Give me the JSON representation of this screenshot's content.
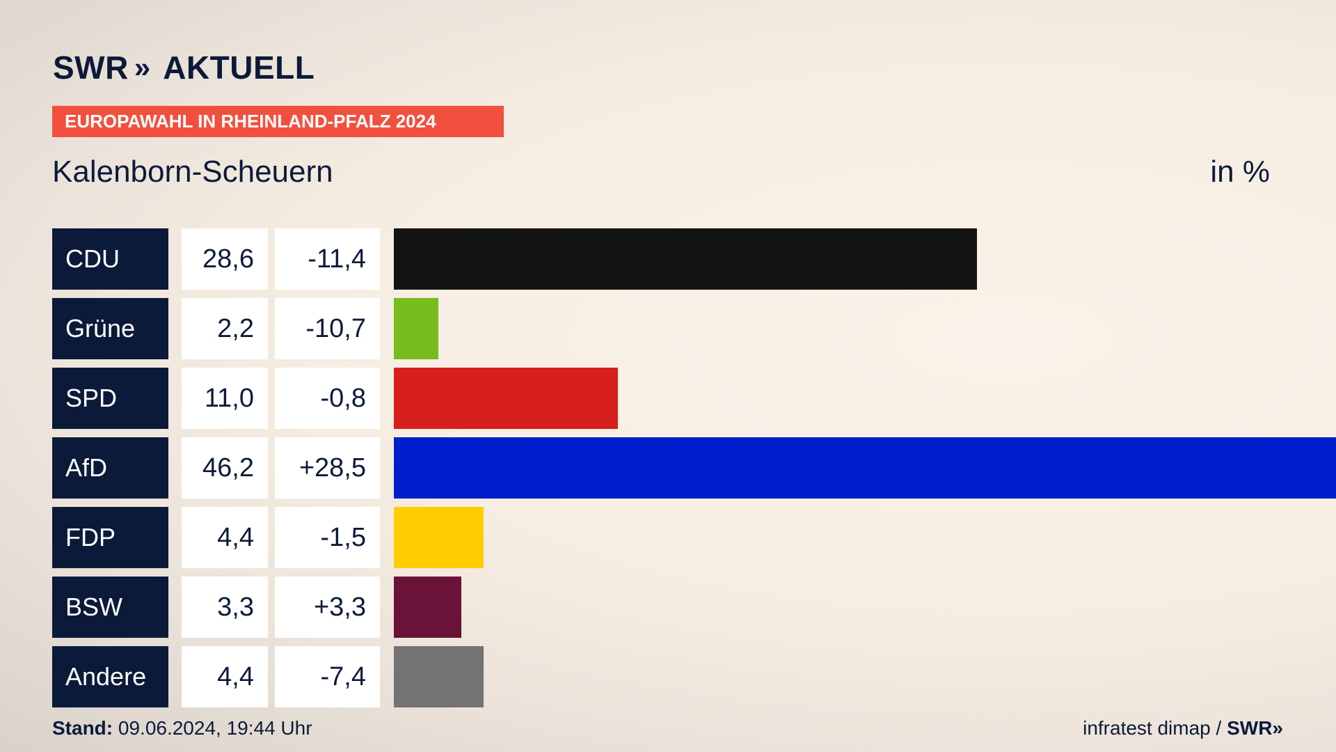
{
  "header": {
    "brand": "SWR",
    "brand_chevrons": "»",
    "brand_product": "AKTUELL",
    "tag": "EUROPAWAHL IN RHEINLAND-PFALZ 2024",
    "subtitle": "Kalenborn-Scheuern",
    "unit": "in %"
  },
  "chart_data": {
    "type": "bar",
    "orientation": "horizontal",
    "title": "EUROPAWAHL IN RHEINLAND-PFALZ 2024",
    "subtitle": "Kalenborn-Scheuern",
    "unit": "in %",
    "xlim": [
      0,
      46.2
    ],
    "categories": [
      "CDU",
      "Grüne",
      "SPD",
      "AfD",
      "FDP",
      "BSW",
      "Andere"
    ],
    "values": [
      28.6,
      2.2,
      11.0,
      46.2,
      4.4,
      3.3,
      4.4
    ],
    "value_labels": [
      "28,6",
      "2,2",
      "11,0",
      "46,2",
      "4,4",
      "3,3",
      "4,4"
    ],
    "diff_labels": [
      "-11,4",
      "-10,7",
      "-0,8",
      "+28,5",
      "-1,5",
      "+3,3",
      "-7,4"
    ],
    "colors": [
      "#131313",
      "#76bd1d",
      "#d71f1d",
      "#001ecb",
      "#ffcd00",
      "#6a1238",
      "#737373"
    ]
  },
  "footer": {
    "stand_label": "Stand:",
    "stand_value": "09.06.2024, 19:44 Uhr",
    "source": "infratest dimap /",
    "source_brand": "SWR»"
  }
}
